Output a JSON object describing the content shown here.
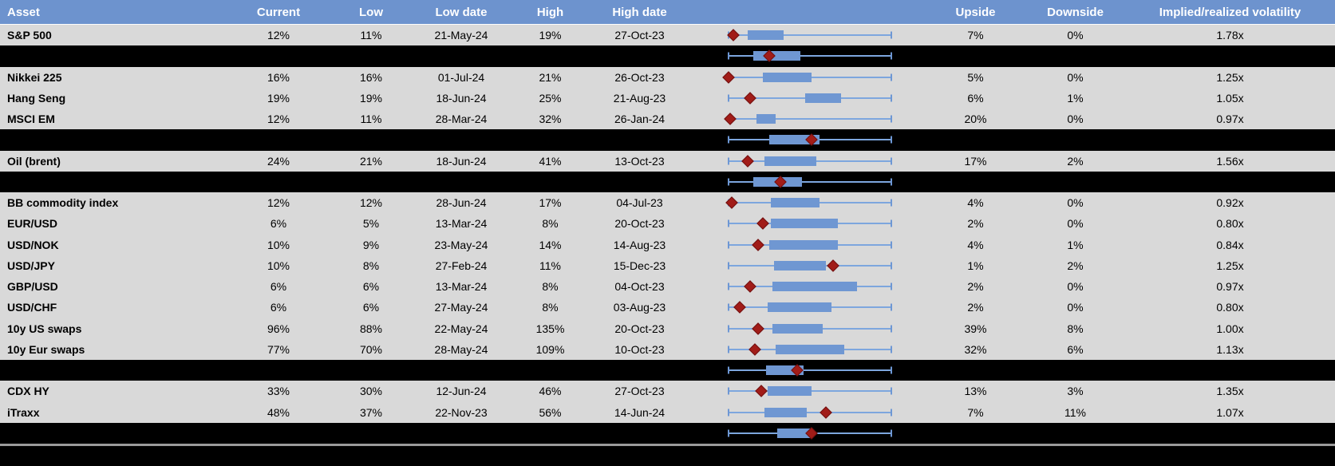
{
  "colors": {
    "header_bg": "#6d93ce",
    "header_text": "#ffffff",
    "row_bg": "#d9d9d9",
    "black_band": "#000000",
    "box_fill": "#6f97d2",
    "whisker": "#7da6de",
    "whisker_cap": "#6d97d4",
    "marker_fill": "#a11c18",
    "marker_edge": "#6f1010",
    "separator_line": "#9a9a9a",
    "text": "#000000"
  },
  "header": {
    "asset": "Asset",
    "current": "Current",
    "low": "Low",
    "low_date": "Low date",
    "high": "High",
    "high_date": "High date",
    "upside": "Upside",
    "downside": "Downside",
    "impl_real": "Implied/realized volatility"
  },
  "chart_data": {
    "type": "table",
    "note": "Each row embeds a horizontal box plot: whiskers span the full range, blue box = middle range, red diamond = current level. box_lo/box_hi/marker are % positions across the fixed plot width.",
    "columns": [
      "Asset",
      "Current",
      "Low",
      "Low date",
      "High",
      "High date",
      "Upside",
      "Downside",
      "Implied/realized volatility"
    ],
    "rows": [
      {
        "kind": "data",
        "asset": "S&P 500",
        "current": "12%",
        "low": "11%",
        "low_date": "21-May-24",
        "high": "19%",
        "high_date": "27-Oct-23",
        "upside": "7%",
        "downside": "0%",
        "impl_real": "1.78x",
        "plot": {
          "box_lo": 12,
          "box_hi": 34,
          "marker": 3
        }
      },
      {
        "kind": "black",
        "plot": {
          "box_lo": 15,
          "box_hi": 44,
          "marker": 25
        }
      },
      {
        "kind": "data",
        "asset": "Nikkei 225",
        "current": "16%",
        "low": "16%",
        "low_date": "01-Jul-24",
        "high": "21%",
        "high_date": "26-Oct-23",
        "upside": "5%",
        "downside": "0%",
        "impl_real": "1.25x",
        "plot": {
          "box_lo": 21,
          "box_hi": 51,
          "marker": 0
        }
      },
      {
        "kind": "data",
        "asset": "Hang Seng",
        "current": "19%",
        "low": "19%",
        "low_date": "18-Jun-24",
        "high": "25%",
        "high_date": "21-Aug-23",
        "upside": "6%",
        "downside": "1%",
        "impl_real": "1.05x",
        "plot": {
          "box_lo": 47,
          "box_hi": 69,
          "marker": 13
        }
      },
      {
        "kind": "data",
        "asset": "MSCI EM",
        "current": "12%",
        "low": "11%",
        "low_date": "28-Mar-24",
        "high": "32%",
        "high_date": "26-Jan-24",
        "upside": "20%",
        "downside": "0%",
        "impl_real": "0.97x",
        "plot": {
          "box_lo": 17,
          "box_hi": 29,
          "marker": 1
        }
      },
      {
        "kind": "black",
        "plot": {
          "box_lo": 25,
          "box_hi": 56,
          "marker": 51
        }
      },
      {
        "kind": "data",
        "asset": "Oil (brent)",
        "current": "24%",
        "low": "21%",
        "low_date": "18-Jun-24",
        "high": "41%",
        "high_date": "13-Oct-23",
        "upside": "17%",
        "downside": "2%",
        "impl_real": "1.56x",
        "plot": {
          "box_lo": 22,
          "box_hi": 54,
          "marker": 12
        }
      },
      {
        "kind": "black",
        "plot": {
          "box_lo": 15,
          "box_hi": 45,
          "marker": 32
        }
      },
      {
        "kind": "data",
        "asset": "BB commodity index",
        "current": "12%",
        "low": "12%",
        "low_date": "28-Jun-24",
        "high": "17%",
        "high_date": "04-Jul-23",
        "upside": "4%",
        "downside": "0%",
        "impl_real": "0.92x",
        "plot": {
          "box_lo": 26,
          "box_hi": 56,
          "marker": 2
        }
      },
      {
        "kind": "data",
        "asset": "EUR/USD",
        "current": "6%",
        "low": "5%",
        "low_date": "13-Mar-24",
        "high": "8%",
        "high_date": "20-Oct-23",
        "upside": "2%",
        "downside": "0%",
        "impl_real": "0.80x",
        "plot": {
          "box_lo": 26,
          "box_hi": 67,
          "marker": 21
        }
      },
      {
        "kind": "data",
        "asset": "USD/NOK",
        "current": "10%",
        "low": "9%",
        "low_date": "23-May-24",
        "high": "14%",
        "high_date": "14-Aug-23",
        "upside": "4%",
        "downside": "1%",
        "impl_real": "0.84x",
        "plot": {
          "box_lo": 25,
          "box_hi": 67,
          "marker": 18
        }
      },
      {
        "kind": "data",
        "asset": "USD/JPY",
        "current": "10%",
        "low": "8%",
        "low_date": "27-Feb-24",
        "high": "11%",
        "high_date": "15-Dec-23",
        "upside": "1%",
        "downside": "2%",
        "impl_real": "1.25x",
        "plot": {
          "box_lo": 28,
          "box_hi": 60,
          "marker": 64
        }
      },
      {
        "kind": "data",
        "asset": "GBP/USD",
        "current": "6%",
        "low": "6%",
        "low_date": "13-Mar-24",
        "high": "8%",
        "high_date": "04-Oct-23",
        "upside": "2%",
        "downside": "0%",
        "impl_real": "0.97x",
        "plot": {
          "box_lo": 27,
          "box_hi": 79,
          "marker": 13
        }
      },
      {
        "kind": "data",
        "asset": "USD/CHF",
        "current": "6%",
        "low": "6%",
        "low_date": "27-May-24",
        "high": "8%",
        "high_date": "03-Aug-23",
        "upside": "2%",
        "downside": "0%",
        "impl_real": "0.80x",
        "plot": {
          "box_lo": 24,
          "box_hi": 63,
          "marker": 7
        }
      },
      {
        "kind": "data",
        "asset": "10y US swaps",
        "current": "96%",
        "low": "88%",
        "low_date": "22-May-24",
        "high": "135%",
        "high_date": "20-Oct-23",
        "upside": "39%",
        "downside": "8%",
        "impl_real": "1.00x",
        "plot": {
          "box_lo": 27,
          "box_hi": 58,
          "marker": 18
        }
      },
      {
        "kind": "data",
        "asset": "10y Eur swaps",
        "current": "77%",
        "low": "70%",
        "low_date": "28-May-24",
        "high": "109%",
        "high_date": "10-Oct-23",
        "upside": "32%",
        "downside": "6%",
        "impl_real": "1.13x",
        "plot": {
          "box_lo": 29,
          "box_hi": 71,
          "marker": 16
        }
      },
      {
        "kind": "black",
        "plot": {
          "box_lo": 23,
          "box_hi": 46,
          "marker": 42
        }
      },
      {
        "kind": "data",
        "asset": "CDX HY",
        "current": "33%",
        "low": "30%",
        "low_date": "12-Jun-24",
        "high": "46%",
        "high_date": "27-Oct-23",
        "upside": "13%",
        "downside": "3%",
        "impl_real": "1.35x",
        "plot": {
          "box_lo": 24,
          "box_hi": 51,
          "marker": 20
        }
      },
      {
        "kind": "data",
        "asset": "iTraxx",
        "current": "48%",
        "low": "37%",
        "low_date": "22-Nov-23",
        "high": "56%",
        "high_date": "14-Jun-24",
        "upside": "7%",
        "downside": "11%",
        "impl_real": "1.07x",
        "plot": {
          "box_lo": 22,
          "box_hi": 48,
          "marker": 60
        }
      },
      {
        "kind": "black",
        "plot": {
          "box_lo": 30,
          "box_hi": 52,
          "marker": 51
        }
      },
      {
        "kind": "separator"
      },
      {
        "kind": "bottom"
      }
    ]
  }
}
